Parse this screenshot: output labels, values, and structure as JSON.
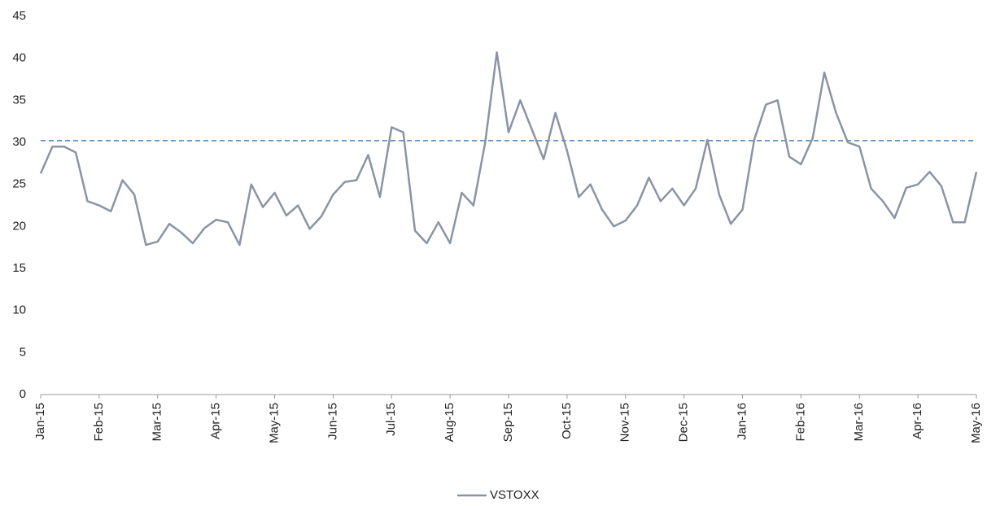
{
  "chart_data": {
    "type": "line",
    "x": [
      "Jan-15",
      null,
      null,
      null,
      null,
      "Feb-15",
      null,
      null,
      null,
      null,
      "Mar-15",
      null,
      null,
      null,
      null,
      "Apr-15",
      null,
      null,
      null,
      null,
      "May-15",
      null,
      null,
      null,
      null,
      "Jun-15",
      null,
      null,
      null,
      null,
      "Jul-15",
      null,
      null,
      null,
      null,
      "Aug-15",
      null,
      null,
      null,
      null,
      "Sep-15",
      null,
      null,
      null,
      null,
      "Oct-15",
      null,
      null,
      null,
      null,
      "Nov-15",
      null,
      null,
      null,
      null,
      "Dec-15",
      null,
      null,
      null,
      null,
      "Jan-16",
      null,
      null,
      null,
      null,
      "Feb-16",
      null,
      null,
      null,
      null,
      "Mar-16",
      null,
      null,
      null,
      null,
      "Apr-16",
      null,
      null,
      null,
      null,
      "May-16"
    ],
    "series": [
      {
        "name": "VSTOXX",
        "color": "#8a94a4",
        "values": [
          26.3,
          29.5,
          29.5,
          28.8,
          23.0,
          22.5,
          21.8,
          25.5,
          23.8,
          17.8,
          18.2,
          20.3,
          19.3,
          18.0,
          19.8,
          20.8,
          20.5,
          17.8,
          25.0,
          22.3,
          24.0,
          21.3,
          22.5,
          19.7,
          21.2,
          23.8,
          25.3,
          25.5,
          28.5,
          23.5,
          31.8,
          31.2,
          19.5,
          18.0,
          20.5,
          18.0,
          24.0,
          22.5,
          30.0,
          40.7,
          31.2,
          35.0,
          31.5,
          28.0,
          33.5,
          29.0,
          23.5,
          25.0,
          22.0,
          20.0,
          20.7,
          22.5,
          25.8,
          23.0,
          24.5,
          22.5,
          24.5,
          30.3,
          23.8,
          20.3,
          22.0,
          30.3,
          34.5,
          35.0,
          28.3,
          27.4,
          30.5,
          38.3,
          33.5,
          30.0,
          29.5,
          24.5,
          23.0,
          21.0,
          24.6,
          25.0,
          26.5,
          24.8,
          20.5,
          20.5,
          26.5
        ]
      }
    ],
    "reference_line": 30.2,
    "reference_color": "#4f81bd",
    "ylim": [
      0,
      45
    ],
    "yticks": [
      0,
      5,
      10,
      15,
      20,
      25,
      30,
      35,
      40,
      45
    ]
  }
}
